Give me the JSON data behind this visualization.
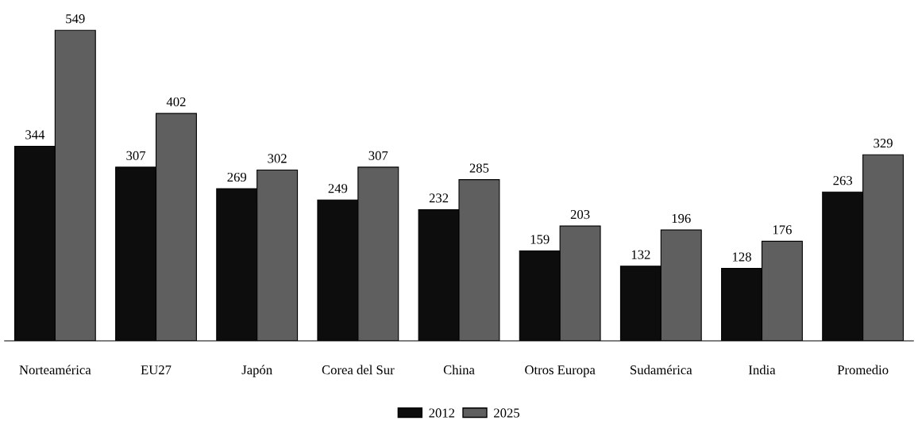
{
  "chart_data": {
    "type": "bar",
    "categories": [
      "Norteamérica",
      "EU27",
      "Japón",
      "Corea del Sur",
      "China",
      "Otros Europa",
      "Sudamérica",
      "India",
      "Promedio"
    ],
    "series": [
      {
        "name": "2012",
        "color": "#0d0d0d",
        "values": [
          344,
          307,
          269,
          249,
          232,
          159,
          132,
          128,
          263
        ]
      },
      {
        "name": "2025",
        "color": "#5f5f5f",
        "values": [
          549,
          402,
          302,
          307,
          285,
          203,
          196,
          176,
          329
        ]
      }
    ],
    "data_labels": true,
    "tick_labels": "x",
    "grid": false,
    "legend": "bottom"
  }
}
